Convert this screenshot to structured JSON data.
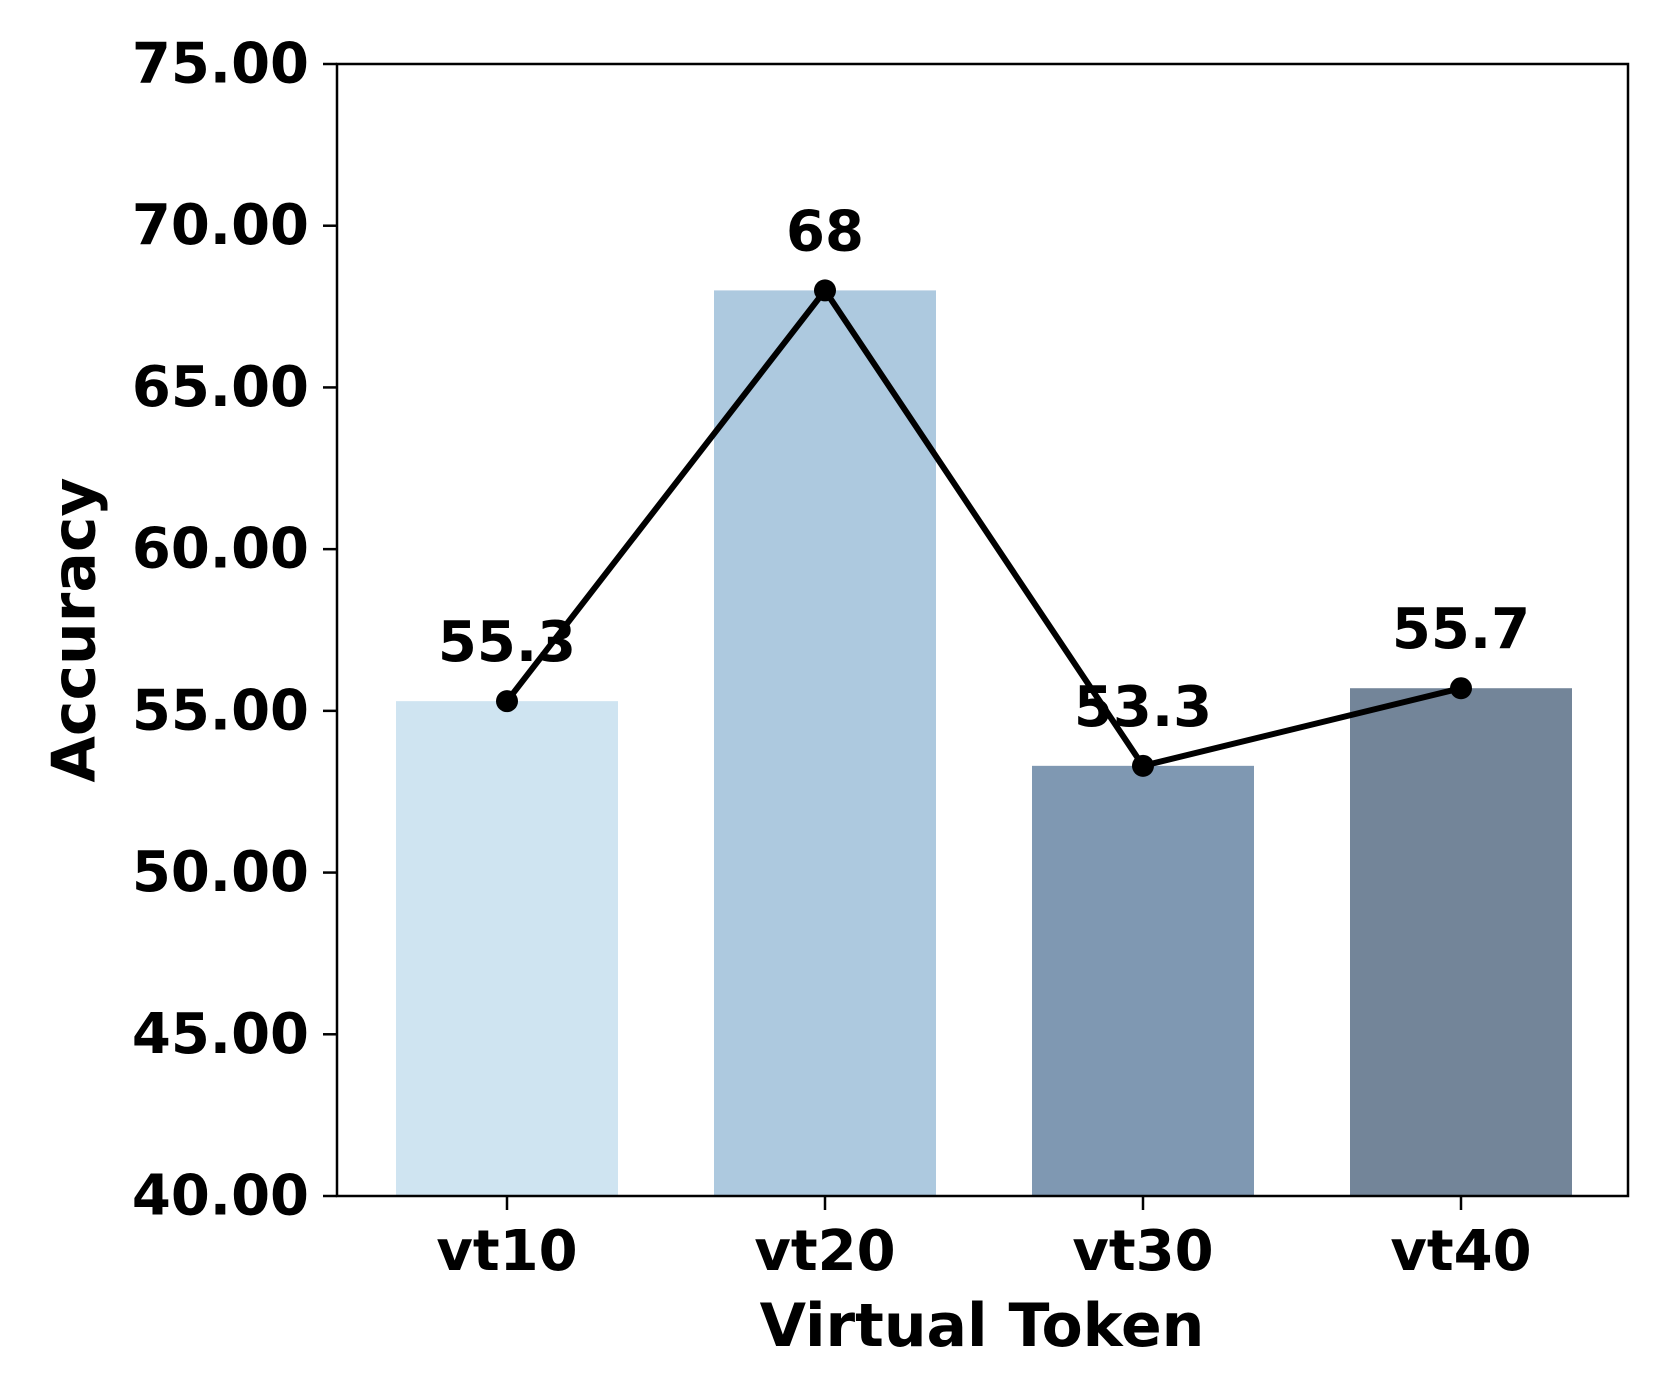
{
  "chart_data": {
    "type": "bar",
    "categories": [
      "vt10",
      "vt20",
      "vt30",
      "vt40"
    ],
    "values": [
      55.3,
      68,
      53.3,
      55.7
    ],
    "data_labels": [
      "55.3",
      "68",
      "53.3",
      "55.7"
    ],
    "overlay_line": {
      "values": [
        55.3,
        68,
        53.3,
        55.7
      ],
      "color": "#000000",
      "markers": true
    },
    "bar_colors": [
      "#cfe4f1",
      "#adc9df",
      "#7f98b2",
      "#738599"
    ],
    "title": "",
    "xlabel": "Virtual Token",
    "ylabel": "Accuracy",
    "ylim": [
      40,
      75
    ],
    "yticks": [
      "40.00",
      "45.00",
      "50.00",
      "55.00",
      "60.00",
      "65.00",
      "70.00",
      "75.00"
    ],
    "grid": false,
    "legend": "none"
  }
}
